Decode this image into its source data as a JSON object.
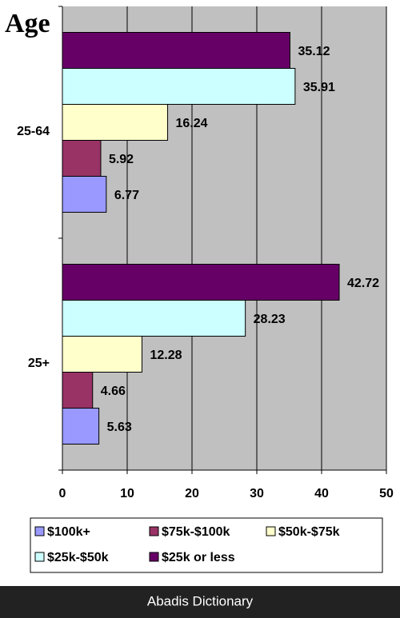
{
  "chart_data": {
    "type": "bar",
    "orientation": "horizontal",
    "title": "Age",
    "categories": [
      "25-64",
      "25+"
    ],
    "series": [
      {
        "name": "$100k+",
        "color": "#9999ff",
        "values": [
          6.77,
          5.63
        ]
      },
      {
        "name": "$75k-$100k",
        "color": "#993366",
        "values": [
          5.92,
          4.66
        ]
      },
      {
        "name": "$50k-$75k",
        "color": "#ffffcc",
        "values": [
          16.24,
          12.28
        ]
      },
      {
        "name": "$25k-$50k",
        "color": "#ccffff",
        "values": [
          35.91,
          28.23
        ]
      },
      {
        "name": "$25k or less",
        "color": "#660066",
        "values": [
          35.12,
          42.72
        ]
      }
    ],
    "xlim": [
      0,
      50
    ],
    "xticks": [
      0,
      10,
      20,
      30,
      40,
      50
    ],
    "grid": true,
    "legend": "bottom"
  },
  "footer": "Abadis Dictionary"
}
